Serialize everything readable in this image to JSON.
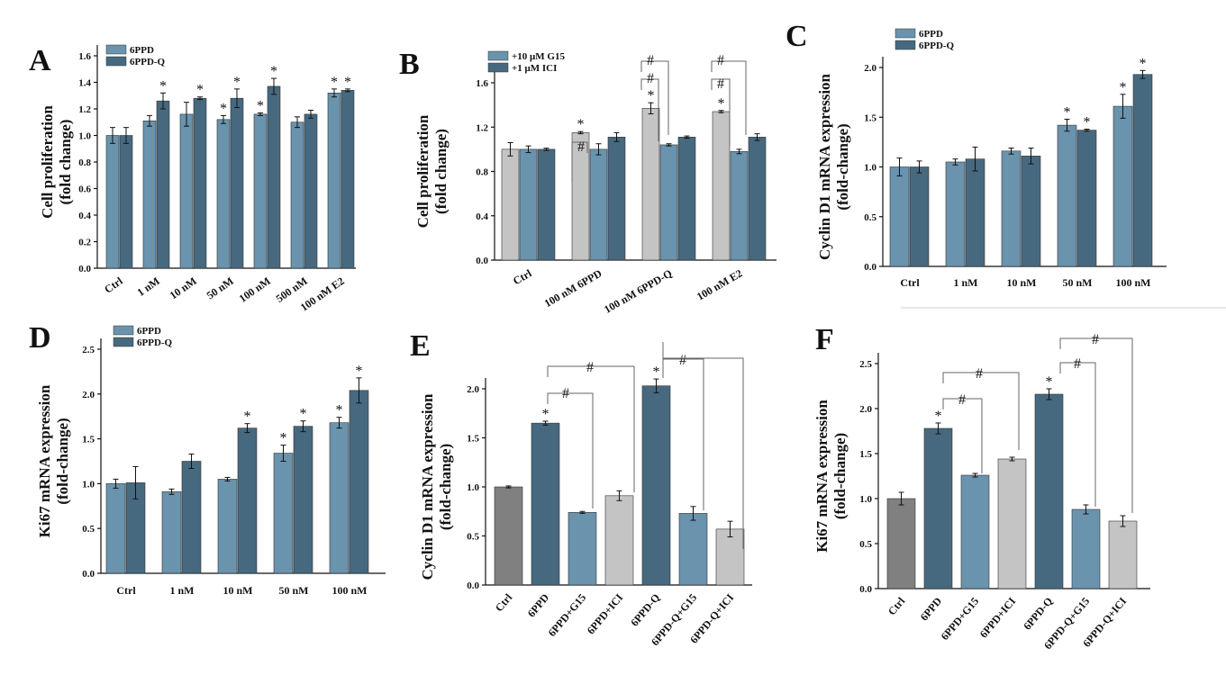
{
  "chart_data": [
    {
      "panel": "A",
      "type": "bar",
      "ylabel": "Cell proliferation\n(fold change)",
      "ylim": [
        0,
        1.6
      ],
      "yticks": [
        "0.0",
        "0.2",
        "0.4",
        "0.6",
        "0.8",
        "1.0",
        "1.2",
        "1.4",
        "1.6"
      ],
      "categories": [
        "Ctrl",
        "1 nM",
        "10 nM",
        "50 nM",
        "100 nM",
        "500 nM",
        "100 nM E2"
      ],
      "legend": "top-left",
      "series": [
        {
          "name": "6PPD",
          "color": "#6a93ad",
          "values": [
            1.0,
            1.11,
            1.16,
            1.12,
            1.16,
            1.1,
            1.32
          ],
          "errors": [
            0.06,
            0.04,
            0.09,
            0.03,
            0.01,
            0.04,
            0.03
          ],
          "marks": [
            "",
            "",
            "",
            "*",
            "*",
            "",
            "*"
          ]
        },
        {
          "name": "6PPD-Q",
          "color": "#46697f",
          "values": [
            1.0,
            1.26,
            1.28,
            1.28,
            1.37,
            1.16,
            1.34
          ],
          "errors": [
            0.06,
            0.06,
            0.01,
            0.07,
            0.06,
            0.03,
            0.01
          ],
          "marks": [
            "",
            "*",
            "*",
            "*",
            "*",
            "",
            "*"
          ]
        }
      ]
    },
    {
      "panel": "B",
      "type": "bar",
      "ylabel": "Cell proliferation\n(fold change)",
      "ylim": [
        0,
        1.6
      ],
      "yticks": [
        "0.0",
        "0.4",
        "0.8",
        "1.2",
        "1.6"
      ],
      "categories": [
        "Ctrl",
        "100 nM 6PPD",
        "100 nM 6PPD-Q",
        "100 nM E2"
      ],
      "legend": "top-left",
      "series": [
        {
          "name": "",
          "color": "#c4c4c4",
          "values": [
            1.0,
            1.15,
            1.37,
            1.34
          ],
          "errors": [
            0.06,
            0.01,
            0.05,
            0.01
          ],
          "marks": [
            "",
            "*",
            "*",
            "*"
          ]
        },
        {
          "name": "+10 μM G15",
          "color": "#6a93ad",
          "values": [
            1.0,
            1.0,
            1.04,
            0.98
          ],
          "errors": [
            0.03,
            0.05,
            0.01,
            0.02
          ],
          "marks": [
            "",
            "",
            "",
            ""
          ]
        },
        {
          "name": "+1 μM ICI",
          "color": "#46697f",
          "values": [
            1.0,
            1.11,
            1.11,
            1.11
          ],
          "errors": [
            0.01,
            0.04,
            0.01,
            0.03
          ],
          "marks": [
            "",
            "",
            "",
            ""
          ]
        }
      ],
      "annotations": [
        "#",
        "#",
        "#",
        "#",
        "#"
      ]
    },
    {
      "panel": "C",
      "type": "bar",
      "ylabel": "Cyclin D1 mRNA expression\n(fold-change)",
      "ylim": [
        0,
        2.0
      ],
      "yticks": [
        "0.0",
        "0.5",
        "1.0",
        "1.5",
        "2.0"
      ],
      "categories": [
        "Ctrl",
        "1 nM",
        "10 nM",
        "50 nM",
        "100 nM"
      ],
      "legend": "top-left",
      "series": [
        {
          "name": "6PPD",
          "color": "#6a93ad",
          "values": [
            1.0,
            1.05,
            1.16,
            1.42,
            1.61
          ],
          "errors": [
            0.09,
            0.03,
            0.03,
            0.06,
            0.12
          ],
          "marks": [
            "",
            "",
            "",
            "*",
            "*"
          ]
        },
        {
          "name": "6PPD-Q",
          "color": "#46697f",
          "values": [
            1.0,
            1.08,
            1.11,
            1.37,
            1.93
          ],
          "errors": [
            0.06,
            0.12,
            0.08,
            0.01,
            0.04
          ],
          "marks": [
            "",
            "",
            "",
            "*",
            "*"
          ]
        }
      ]
    },
    {
      "panel": "D",
      "type": "bar",
      "ylabel": "Ki67 mRNA expression\n(fold-change)",
      "ylim": [
        0,
        2.5
      ],
      "yticks": [
        "0.0",
        "0.5",
        "1.0",
        "1.5",
        "2.0",
        "2.5"
      ],
      "categories": [
        "Ctrl",
        "1 nM",
        "10 nM",
        "50 nM",
        "100 nM"
      ],
      "legend": "top-left",
      "series": [
        {
          "name": "6PPD",
          "color": "#6a93ad",
          "values": [
            1.0,
            0.91,
            1.05,
            1.34,
            1.68
          ],
          "errors": [
            0.05,
            0.03,
            0.02,
            0.09,
            0.06
          ],
          "marks": [
            "",
            "",
            "",
            "*",
            "*"
          ]
        },
        {
          "name": "6PPD-Q",
          "color": "#46697f",
          "values": [
            1.01,
            1.25,
            1.62,
            1.64,
            2.04
          ],
          "errors": [
            0.18,
            0.08,
            0.05,
            0.06,
            0.14
          ],
          "marks": [
            "",
            "",
            "*",
            "*",
            "*"
          ]
        }
      ]
    },
    {
      "panel": "E",
      "type": "bar",
      "ylabel": "Cyclin D1 mRNA expression\n(fold-change)",
      "ylim": [
        0,
        2.0
      ],
      "yticks": [
        "0.0",
        "0.5",
        "1.0",
        "1.5",
        "2.0"
      ],
      "categories": [
        "Ctrl",
        "6PPD",
        "6PPD+G15",
        "6PPD+ICI",
        "6PPD-Q",
        "6PPD-Q+G15",
        "6PPD-Q+ICI"
      ],
      "values": [
        1.0,
        1.65,
        0.74,
        0.91,
        2.03,
        0.73,
        0.57
      ],
      "errors": [
        0.01,
        0.02,
        0.01,
        0.05,
        0.07,
        0.07,
        0.08
      ],
      "colors": [
        "#808080",
        "#46697f",
        "#6a93ad",
        "#c4c4c4",
        "#46697f",
        "#6a93ad",
        "#c4c4c4"
      ],
      "marks": [
        "",
        "*",
        "",
        "",
        "*",
        "",
        ""
      ],
      "annotations": [
        "#",
        "#",
        "#"
      ]
    },
    {
      "panel": "F",
      "type": "bar",
      "ylabel": "Ki67 mRNA expression\n(fold-change)",
      "ylim": [
        0,
        2.5
      ],
      "yticks": [
        "0.0",
        "0.5",
        "1.0",
        "1.5",
        "2.0",
        "2.5"
      ],
      "categories": [
        "Ctrl",
        "6PPD",
        "6PPD+G15",
        "6PPD+ICI",
        "6PPD-Q",
        "6PPD-Q+G15",
        "6PPD-Q+ICI"
      ],
      "values": [
        1.0,
        1.78,
        1.26,
        1.44,
        2.16,
        0.88,
        0.75
      ],
      "errors": [
        0.07,
        0.06,
        0.02,
        0.02,
        0.06,
        0.05,
        0.06
      ],
      "colors": [
        "#808080",
        "#46697f",
        "#6a93ad",
        "#c4c4c4",
        "#46697f",
        "#6a93ad",
        "#c4c4c4"
      ],
      "marks": [
        "",
        "*",
        "",
        "",
        "*",
        "",
        ""
      ],
      "annotations": [
        "#",
        "#",
        "#",
        "#"
      ]
    }
  ]
}
